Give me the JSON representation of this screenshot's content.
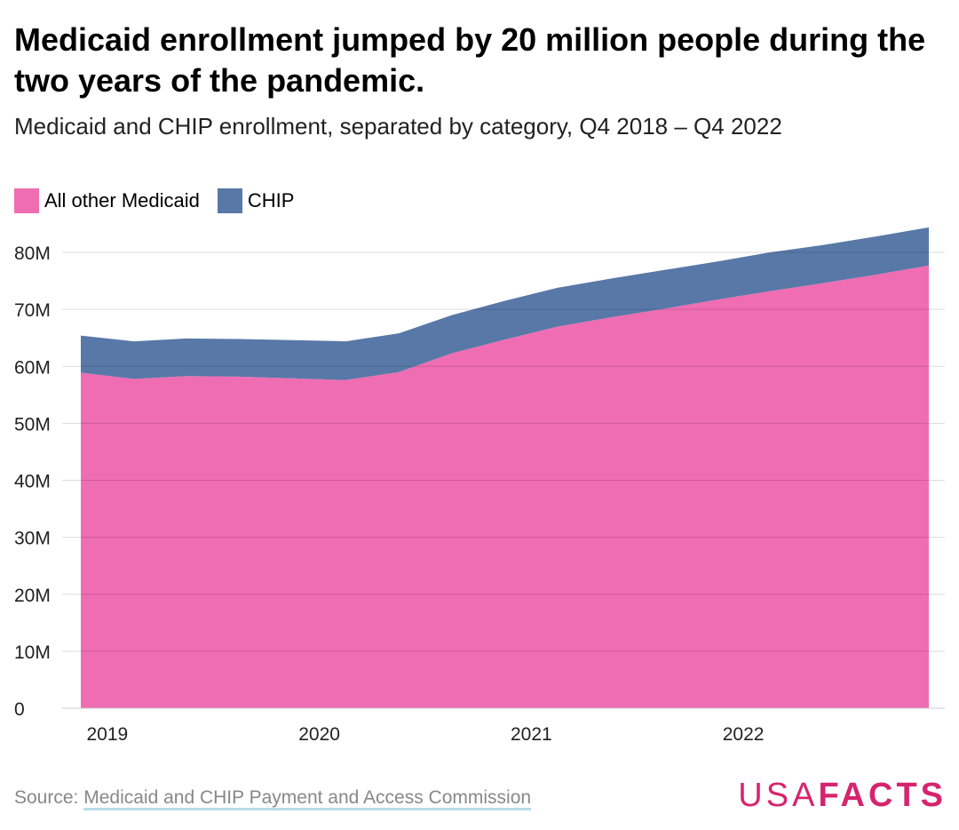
{
  "title": "Medicaid enrollment jumped by 20 million people during the two years of the pandemic.",
  "subtitle": "Medicaid and CHIP enrollment, separated by category, Q4 2018 – Q4 2022",
  "source": {
    "label": "Source: ",
    "link_text": "Medicaid and CHIP Payment and Access Commission"
  },
  "logo": {
    "part1": "USA",
    "part2": "FACTS",
    "color": "#d6246e"
  },
  "chart_data": {
    "type": "area",
    "stacked": true,
    "x": [
      "2018 Q4",
      "2019 Q1",
      "2019 Q2",
      "2019 Q3",
      "2019 Q4",
      "2020 Q1",
      "2020 Q2",
      "2020 Q3",
      "2020 Q4",
      "2021 Q1",
      "2021 Q2",
      "2021 Q3",
      "2021 Q4",
      "2022 Q1",
      "2022 Q2",
      "2022 Q3",
      "2022 Q4"
    ],
    "series": [
      {
        "name": "All other Medicaid",
        "color": "#ef6db2",
        "values": [
          58.9,
          57.8,
          58.3,
          58.2,
          57.9,
          57.6,
          59.0,
          62.3,
          64.7,
          67.0,
          68.6,
          70.1,
          71.7,
          73.2,
          74.6,
          76.1,
          77.7
        ]
      },
      {
        "name": "CHIP",
        "color": "#5878a8",
        "values": [
          6.5,
          6.6,
          6.6,
          6.6,
          6.7,
          6.8,
          6.8,
          6.7,
          6.8,
          6.8,
          6.8,
          6.8,
          6.7,
          6.8,
          6.7,
          6.7,
          6.7
        ]
      }
    ],
    "ylim": [
      0,
      85
    ],
    "yticks": [
      0,
      10,
      20,
      30,
      40,
      50,
      60,
      70,
      80
    ],
    "ytick_labels": [
      "0",
      "10M",
      "20M",
      "30M",
      "40M",
      "50M",
      "60M",
      "70M",
      "80M"
    ],
    "xtick_labels": [
      {
        "label": "2019",
        "index": 0.5
      },
      {
        "label": "2020",
        "index": 4.5
      },
      {
        "label": "2021",
        "index": 8.5
      },
      {
        "label": "2022",
        "index": 12.5
      }
    ],
    "legend": "top-left",
    "grid": true
  }
}
